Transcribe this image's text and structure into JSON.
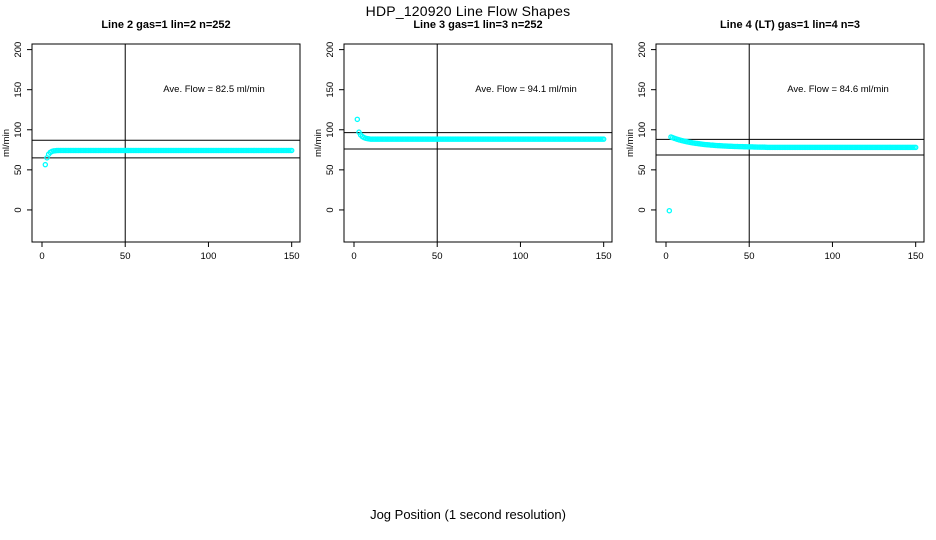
{
  "page": {
    "title": "HDP_120920  Line Flow Shapes",
    "xlabel_global": "Jog Position (1 second resolution)"
  },
  "colors": {
    "points": "#00FFFF",
    "axis": "#000000",
    "background": "#FFFFFF"
  },
  "chart_data": [
    {
      "type": "scatter",
      "title": "Line 2 gas=1 lin=2 n=252",
      "annotation": "Ave. Flow =  82.5  ml/min",
      "ave_flow_ml_min": 82.5,
      "ylabel": "ml/min",
      "xticks": [
        0,
        50,
        100,
        150
      ],
      "yticks": [
        0,
        50,
        100,
        150,
        200
      ],
      "xlim": [
        -6,
        155
      ],
      "ylim": [
        -40,
        207
      ],
      "grid": false,
      "ref_hlines": [
        87,
        65
      ],
      "ref_vlines": [
        50
      ],
      "marker": "open-circle",
      "series": {
        "name": "flow",
        "x_start": 2,
        "x_step": 1,
        "y": [
          56.5,
          65,
          69.5,
          71.8,
          73,
          73.6,
          73.9,
          74.1,
          74.2,
          74.2,
          74.2,
          74.2,
          74.2,
          74.2,
          74.2,
          74.2,
          74.2,
          74.2,
          74.2,
          74.2,
          74.2,
          74.2,
          74.2,
          74.2,
          74.2,
          74.2,
          74.2,
          74.2,
          74.2,
          74.2,
          74.2,
          74.2,
          74.2,
          74.2,
          74.2,
          74.2,
          74.2,
          74.2,
          74.2,
          74.2,
          74.2,
          74.2,
          74.2,
          74.2,
          74.2,
          74.2,
          74.2,
          74.2,
          74.2,
          74.2,
          74.2,
          74.2,
          74.2,
          74.2,
          74.2,
          74.2,
          74.2,
          74.2,
          74.2,
          74.2,
          74.2,
          74.2,
          74.2,
          74.2,
          74.2,
          74.2,
          74.2,
          74.2,
          74.2,
          74.2,
          74.2,
          74.2,
          74.2,
          74.2,
          74.2,
          74.2,
          74.2,
          74.2,
          74.2,
          74.2,
          74.2,
          74.2,
          74.2,
          74.2,
          74.2,
          74.2,
          74.2,
          74.2,
          74.2,
          74.2,
          74.2,
          74.2,
          74.2,
          74.2,
          74.2,
          74.2,
          74.2,
          74.2,
          74.2,
          74.2,
          74.2,
          74.2,
          74.2,
          74.2,
          74.2,
          74.2,
          74.2,
          74.2,
          74.2,
          74.2,
          74.2,
          74.2,
          74.2,
          74.2,
          74.2,
          74.2,
          74.2,
          74.2,
          74.2,
          74.2,
          74.2,
          74.2,
          74.2,
          74.2,
          74.2,
          74.2,
          74.2,
          74.2,
          74.2,
          74.2,
          74.2,
          74.2,
          74.2,
          74.2,
          74.2,
          74.2,
          74.2,
          74.2,
          74.2,
          74.2,
          74.2,
          74.2,
          74.2,
          74.2,
          74.2,
          74.2,
          74.2,
          74.2,
          74.2
        ]
      }
    },
    {
      "type": "scatter",
      "title": "Line 3 gas=1 lin=3 n=252",
      "annotation": "Ave. Flow =  94.1  ml/min",
      "ave_flow_ml_min": 94.1,
      "ylabel": "ml/min",
      "xticks": [
        0,
        50,
        100,
        150
      ],
      "yticks": [
        0,
        50,
        100,
        150,
        200
      ],
      "xlim": [
        -6,
        155
      ],
      "ylim": [
        -40,
        207
      ],
      "grid": false,
      "ref_hlines": [
        96.5,
        76
      ],
      "ref_vlines": [
        50
      ],
      "marker": "open-circle",
      "series": {
        "name": "flow",
        "x_start": 2,
        "x_step": 1,
        "y": [
          113,
          97,
          93.5,
          91.5,
          90.3,
          89.5,
          89,
          88.7,
          88.3,
          88.3,
          88.3,
          88.3,
          88.3,
          88.3,
          88.3,
          88.3,
          88.3,
          88.3,
          88.3,
          88.3,
          88.3,
          88.3,
          88.3,
          88.3,
          88.3,
          88.3,
          88.3,
          88.3,
          88.3,
          88.3,
          88.3,
          88.3,
          88.3,
          88.3,
          88.3,
          88.3,
          88.3,
          88.3,
          88.3,
          88.3,
          88.3,
          88.3,
          88.3,
          88.3,
          88.3,
          88.3,
          88.3,
          88.3,
          88.3,
          88.3,
          88.3,
          88.3,
          88.3,
          88.3,
          88.3,
          88.3,
          88.3,
          88.3,
          88.3,
          88.3,
          88.3,
          88.3,
          88.3,
          88.3,
          88.3,
          88.3,
          88.3,
          88.3,
          88.3,
          88.3,
          88.3,
          88.3,
          88.3,
          88.3,
          88.3,
          88.3,
          88.3,
          88.3,
          88.3,
          88.3,
          88.3,
          88.3,
          88.3,
          88.3,
          88.3,
          88.3,
          88.3,
          88.3,
          88.3,
          88.3,
          88.3,
          88.3,
          88.3,
          88.3,
          88.3,
          88.3,
          88.3,
          88.3,
          88.3,
          88.3,
          88.3,
          88.3,
          88.3,
          88.3,
          88.3,
          88.3,
          88.3,
          88.3,
          88.3,
          88.3,
          88.3,
          88.3,
          88.3,
          88.3,
          88.3,
          88.3,
          88.3,
          88.3,
          88.3,
          88.3,
          88.3,
          88.3,
          88.3,
          88.3,
          88.3,
          88.3,
          88.3,
          88.3,
          88.3,
          88.3,
          88.3,
          88.3,
          88.3,
          88.3,
          88.3,
          88.3,
          88.3,
          88.3,
          88.3,
          88.3,
          88.3,
          88.3,
          88.3,
          88.3,
          88.3,
          88.3,
          88.3,
          88.3,
          88.3
        ]
      }
    },
    {
      "type": "scatter",
      "title": "Line 4 (LT) gas=1 lin=4 n=3",
      "annotation": "Ave. Flow =  84.6  ml/min",
      "ave_flow_ml_min": 84.6,
      "ylabel": "ml/min",
      "xticks": [
        0,
        50,
        100,
        150
      ],
      "yticks": [
        0,
        50,
        100,
        150,
        200
      ],
      "xlim": [
        -6,
        155
      ],
      "ylim": [
        -40,
        207
      ],
      "grid": false,
      "ref_hlines": [
        88,
        68.5
      ],
      "ref_vlines": [
        50
      ],
      "marker": "open-circle",
      "series": {
        "name": "flow",
        "x_start": 2,
        "x_step": 1,
        "y": [
          -1,
          91,
          90.2,
          89.4,
          88.7,
          88.0,
          87.4,
          86.8,
          86.3,
          85.8,
          85.3,
          84.9,
          84.5,
          84.1,
          83.7,
          83.4,
          83.1,
          82.8,
          82.5,
          82.2,
          82.0,
          81.7,
          81.5,
          81.3,
          81.1,
          80.9,
          80.8,
          80.6,
          80.4,
          80.3,
          80.2,
          80.0,
          79.9,
          79.8,
          79.7,
          79.6,
          79.5,
          79.4,
          79.3,
          79.2,
          79.2,
          79.1,
          79.0,
          79.0,
          78.9,
          78.8,
          78.8,
          78.7,
          78.7,
          78.6,
          78.6,
          78.5,
          78.5,
          78.4,
          78.4,
          78.3,
          78.3,
          78.3,
          78.2,
          78.1,
          78.1,
          78.1,
          78.1,
          78.1,
          78.1,
          78.1,
          78.1,
          78.1,
          78.1,
          78.1,
          78.1,
          78.1,
          78.1,
          78.1,
          78.1,
          78.1,
          78.1,
          78.1,
          78.1,
          78.1,
          78.1,
          78.1,
          78.1,
          78.1,
          78.1,
          78.1,
          78.1,
          78.1,
          78.1,
          78.1,
          78.1,
          78.1,
          78.1,
          78.1,
          78.1,
          78.1,
          78.1,
          78.1,
          78.1,
          78.0,
          78.0,
          78.0,
          78.0,
          78.0,
          78.0,
          78.0,
          78.0,
          78.0,
          78.0,
          78.0,
          78.0,
          78.0,
          78.0,
          78.0,
          78.0,
          78.0,
          78.0,
          78.0,
          78.0,
          78.0,
          78.0,
          78.0,
          78.0,
          78.0,
          78.0,
          78.0,
          78.0,
          78.0,
          78.0,
          78.0,
          78.0,
          78.0,
          78.0,
          78.0,
          78.0,
          78.0,
          78.0,
          78.0,
          78.0,
          78.0,
          78.0,
          78.0,
          78.0,
          78.0,
          78.0,
          78.0,
          78.0,
          78.0,
          78.0
        ]
      }
    }
  ]
}
